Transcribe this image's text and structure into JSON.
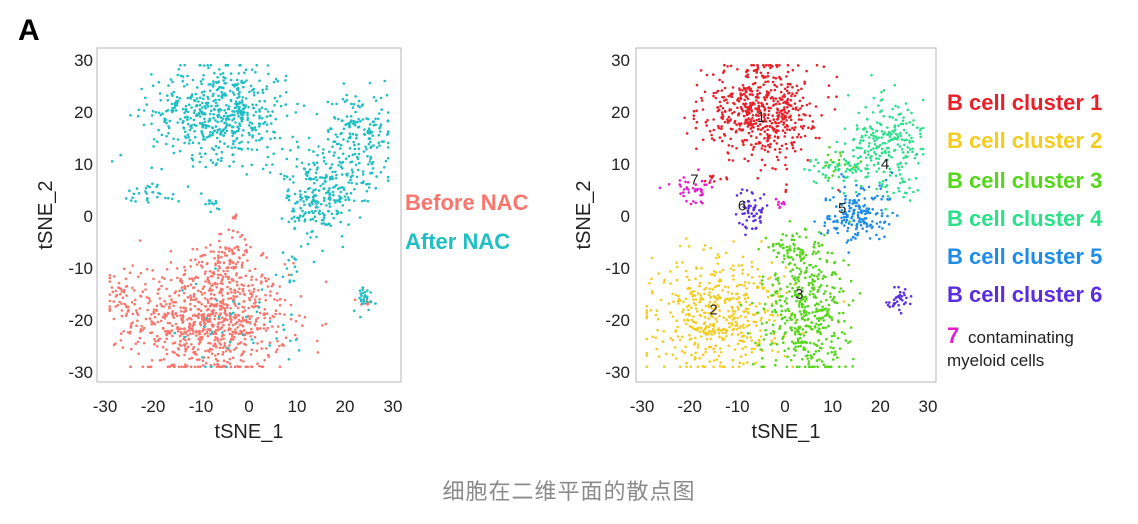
{
  "panel_label": "A",
  "caption": "细胞在二维平面的散点图",
  "chart_data": [
    {
      "type": "scatter",
      "id": "left",
      "xlabel": "tSNE_1",
      "ylabel": "tSNE_2",
      "xlim": [
        -30,
        30
      ],
      "ylim": [
        -30,
        30
      ],
      "xticks": [
        -30,
        -20,
        -10,
        0,
        10,
        20,
        30
      ],
      "yticks": [
        -30,
        -20,
        -10,
        0,
        10,
        20,
        30
      ],
      "legend_position": "right",
      "series": [
        {
          "name": "Before NAC",
          "color": "#f8766d",
          "groups": [
            {
              "cx": -8,
              "cy": -20,
              "sx": 8,
              "sy": 5.5,
              "n": 850
            },
            {
              "cx": -26,
              "cy": -15,
              "sx": 2,
              "sy": 3,
              "n": 50
            },
            {
              "cx": -6,
              "cy": -9,
              "sx": 2.5,
              "sy": 2,
              "n": 40
            },
            {
              "cx": -3,
              "cy": -7,
              "sx": 2.5,
              "sy": 2.5,
              "n": 50
            },
            {
              "cx": 24,
              "cy": -17,
              "sx": 0.8,
              "sy": 0.8,
              "n": 6
            },
            {
              "cx": -4,
              "cy": 0,
              "sx": 1,
              "sy": 0.6,
              "n": 5
            }
          ]
        },
        {
          "name": "After NAC",
          "color": "#1fbfc4",
          "groups": [
            {
              "cx": -6,
              "cy": 20,
              "sx": 7,
              "sy": 4.5,
              "n": 560
            },
            {
              "cx": 23,
              "cy": 16,
              "sx": 3.5,
              "sy": 4,
              "n": 160
            },
            {
              "cx": 16,
              "cy": 9,
              "sx": 6,
              "sy": 2.5,
              "n": 120
            },
            {
              "cx": 15,
              "cy": 2,
              "sx": 3.5,
              "sy": 3,
              "n": 170
            },
            {
              "cx": -20,
              "cy": 4.5,
              "sx": 3,
              "sy": 1,
              "n": 30
            },
            {
              "cx": -8,
              "cy": 2.5,
              "sx": 1.5,
              "sy": 1,
              "n": 12
            },
            {
              "cx": 24,
              "cy": -16,
              "sx": 1.2,
              "sy": 1.3,
              "n": 28
            },
            {
              "cx": 8,
              "cy": -10,
              "sx": 2,
              "sy": 2,
              "n": 15
            },
            {
              "cx": -3,
              "cy": -22,
              "sx": 9,
              "sy": 5,
              "n": 40
            }
          ]
        }
      ],
      "legend": [
        {
          "text": "Before NAC",
          "color": "#f8766d"
        },
        {
          "text": "After NAC",
          "color": "#1fbfc4"
        }
      ]
    },
    {
      "type": "scatter",
      "id": "right",
      "xlabel": "tSNE_1",
      "ylabel": "tSNE_2",
      "xlim": [
        -30,
        30
      ],
      "ylim": [
        -30,
        30
      ],
      "xticks": [
        -30,
        -20,
        -10,
        0,
        10,
        20,
        30
      ],
      "yticks": [
        -30,
        -20,
        -10,
        0,
        10,
        20,
        30
      ],
      "legend_position": "right",
      "series": [
        {
          "name": "B cell cluster 1",
          "color": "#e8202a",
          "groups": [
            {
              "cx": -5,
              "cy": 20,
              "sx": 6,
              "sy": 4.5,
              "n": 560
            },
            {
              "cx": -15,
              "cy": 7,
              "sx": 1.2,
              "sy": 0.5,
              "n": 8
            },
            {
              "cx": 0,
              "cy": 5,
              "sx": 0.5,
              "sy": 0.5,
              "n": 3
            }
          ]
        },
        {
          "name": "B cell cluster 2",
          "color": "#f2cc1f",
          "groups": [
            {
              "cx": -14,
              "cy": -19,
              "sx": 7,
              "sy": 5.5,
              "n": 480
            }
          ]
        },
        {
          "name": "B cell cluster 3",
          "color": "#55d61a",
          "groups": [
            {
              "cx": 4,
              "cy": -18,
              "sx": 4.5,
              "sy": 6.5,
              "n": 420
            },
            {
              "cx": 2,
              "cy": -6,
              "sx": 2.5,
              "sy": 2,
              "n": 60
            },
            {
              "cx": 11,
              "cy": 10,
              "sx": 2,
              "sy": 1.5,
              "n": 20
            }
          ]
        },
        {
          "name": "B cell cluster 4",
          "color": "#2be08a",
          "groups": [
            {
              "cx": 21,
              "cy": 15,
              "sx": 4,
              "sy": 4,
              "n": 220
            },
            {
              "cx": 12,
              "cy": 9,
              "sx": 4,
              "sy": 2,
              "n": 60
            },
            {
              "cx": 25,
              "cy": 6,
              "sx": 2.5,
              "sy": 1.5,
              "n": 25
            }
          ]
        },
        {
          "name": "B cell cluster 5",
          "color": "#1f8ce8",
          "groups": [
            {
              "cx": 15,
              "cy": 0,
              "sx": 3.5,
              "sy": 3,
              "n": 180
            }
          ]
        },
        {
          "name": "B cell cluster 6",
          "color": "#5a2ee0",
          "groups": [
            {
              "cx": -7,
              "cy": 1,
              "sx": 1.5,
              "sy": 1.8,
              "n": 55
            },
            {
              "cx": 24,
              "cy": -16,
              "sx": 1.2,
              "sy": 1.4,
              "n": 35
            }
          ]
        },
        {
          "name": "7 contaminating myeloid cells",
          "color": "#e61ad0",
          "groups": [
            {
              "cx": -20,
              "cy": 5,
              "sx": 2,
              "sy": 1.3,
              "n": 40
            },
            {
              "cx": -1,
              "cy": 2,
              "sx": 0.8,
              "sy": 0.5,
              "n": 8
            }
          ]
        }
      ],
      "cluster_labels": [
        {
          "text": "1",
          "x": -5,
          "y": 19
        },
        {
          "text": "2",
          "x": -15,
          "y": -18
        },
        {
          "text": "3",
          "x": 3,
          "y": -15
        },
        {
          "text": "4",
          "x": 21,
          "y": 10
        },
        {
          "text": "5",
          "x": 12,
          "y": 1.5
        },
        {
          "text": "6",
          "x": -9,
          "y": 2
        },
        {
          "text": "7",
          "x": -19,
          "y": 7
        }
      ],
      "legend": [
        {
          "text": "B cell cluster 1",
          "color": "#e8202a"
        },
        {
          "text": "B cell cluster 2",
          "color": "#f2cc1f"
        },
        {
          "text": "B cell cluster 3",
          "color": "#55d61a"
        },
        {
          "text": "B cell cluster 4",
          "color": "#2be08a"
        },
        {
          "text": "B cell cluster 5",
          "color": "#1f8ce8"
        },
        {
          "text": "B cell cluster 6",
          "color": "#5a2ee0"
        }
      ],
      "legend_note": {
        "number": "7",
        "number_color": "#e61ad0",
        "line1": "contaminating",
        "line2": "myeloid cells"
      }
    }
  ]
}
